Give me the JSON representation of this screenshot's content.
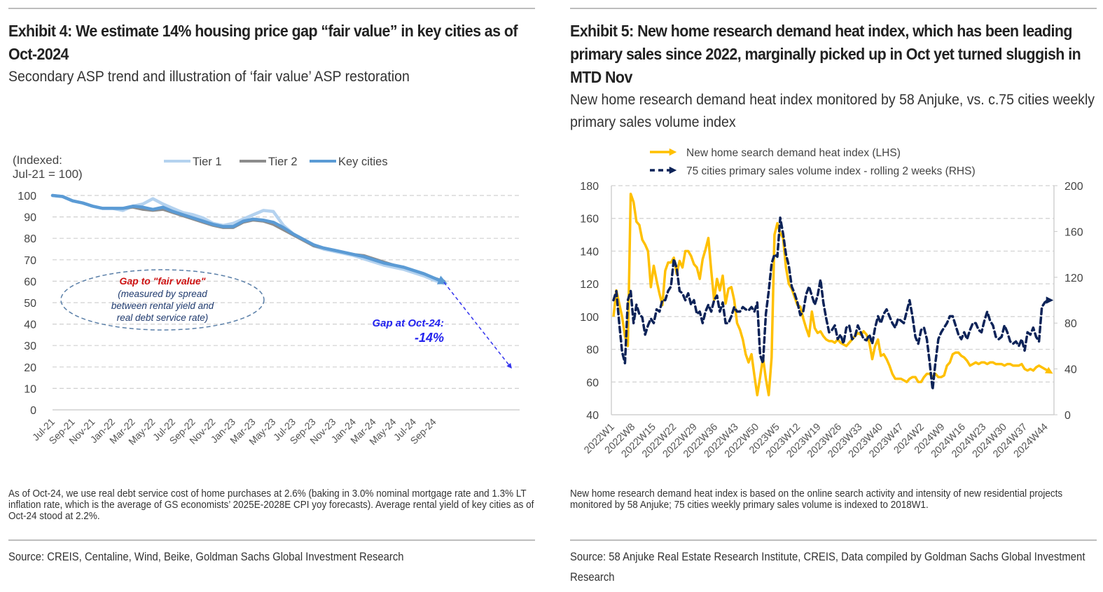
{
  "exhibit4": {
    "title": "Exhibit 4: We estimate 14% housing price gap “fair value” in key cities as of Oct-2024",
    "subtitle": "Secondary ASP trend and illustration of ‘fair value’ ASP restoration",
    "note": "As of Oct-24, we use real debt service cost of home purchases at 2.6% (baking in 3.0% nominal mortgage rate and 1.3% LT inflation rate, which is the average of GS economists’ 2025E-2028E CPI yoy forecasts). Average rental yield of key cities as of Oct-24 stood at 2.2%.",
    "source": "Source: CREIS, Centaline, Wind, Beike, Goldman Sachs Global Investment Research"
  },
  "exhibit5": {
    "title": "Exhibit 5: New home research demand heat index, which has been leading primary sales since 2022, marginally picked up in Oct yet turned sluggish in MTD Nov",
    "subtitle": "New home research demand heat index monitored by 58 Anjuke, vs. c.75 cities weekly primary sales volume index",
    "note": "New home research demand heat index is based on the online search activity and intensity of new residential projects monitored by 58 Anjuke; 75 cities weekly primary sales volume is indexed to 2018W1.",
    "source": "Source: 58 Anjuke Real Estate Research Institute, CREIS, Data compiled by Goldman Sachs Global Investment Research"
  },
  "chart_data": [
    {
      "type": "line",
      "title": "Secondary ASP trend and illustration of ‘fair value’ ASP restoration",
      "ylabel_lines": [
        "(Indexed:",
        "Jul-21 = 100)"
      ],
      "xlabel": "",
      "ylim": [
        0,
        100
      ],
      "yticks": [
        0,
        10,
        20,
        30,
        40,
        50,
        60,
        70,
        80,
        90,
        100
      ],
      "grid": true,
      "legend_position": "top",
      "x_labels": [
        "Jul-21",
        "Sep-21",
        "Nov-21",
        "Jan-22",
        "Mar-22",
        "May-22",
        "Jul-22",
        "Sep-22",
        "Nov-22",
        "Jan-23",
        "Mar-23",
        "May-23",
        "Jul-23",
        "Sep-23",
        "Nov-23",
        "Jan-24",
        "Mar-24",
        "May-24",
        "Jul-24",
        "Sep-24"
      ],
      "x": [
        "Jul-21",
        "Aug-21",
        "Sep-21",
        "Oct-21",
        "Nov-21",
        "Dec-21",
        "Jan-22",
        "Feb-22",
        "Mar-22",
        "Apr-22",
        "May-22",
        "Jun-22",
        "Jul-22",
        "Aug-22",
        "Sep-22",
        "Oct-22",
        "Nov-22",
        "Dec-22",
        "Jan-23",
        "Feb-23",
        "Mar-23",
        "Apr-23",
        "May-23",
        "Jun-23",
        "Jul-23",
        "Aug-23",
        "Sep-23",
        "Oct-23",
        "Nov-23",
        "Dec-23",
        "Jan-24",
        "Feb-24",
        "Mar-24",
        "Apr-24",
        "May-24",
        "Jun-24",
        "Jul-24",
        "Aug-24",
        "Sep-24",
        "Oct-24"
      ],
      "series": [
        {
          "name": "Tier 1",
          "color": "#b4d2ef",
          "values": [
            100,
            99.5,
            97.5,
            96.5,
            95,
            94,
            94,
            93,
            95,
            96,
            98.5,
            96,
            94,
            92,
            91,
            89.5,
            87,
            86,
            87,
            89,
            91,
            93,
            92.5,
            86,
            82,
            79.5,
            76.5,
            75,
            74,
            73,
            72,
            70.5,
            69,
            67.5,
            66.5,
            65.5,
            64,
            62.5,
            60.5,
            59
          ]
        },
        {
          "name": "Tier 2",
          "color": "#8c8c8c",
          "values": [
            100,
            99.5,
            97.5,
            96.5,
            95,
            94,
            94,
            94,
            94.5,
            93.5,
            93,
            93.5,
            92,
            90.5,
            89,
            87.5,
            86,
            85,
            85,
            87.5,
            88.5,
            88,
            86.5,
            84,
            81.5,
            79,
            76.5,
            75.5,
            74.5,
            73.5,
            72.5,
            72,
            70.5,
            69,
            67.5,
            66.5,
            65,
            63.5,
            61.5,
            60
          ]
        },
        {
          "name": "Key cities",
          "color": "#5b9bd5",
          "values": [
            100,
            99.5,
            97.5,
            96.5,
            95,
            94,
            94,
            94,
            95,
            94.5,
            93.5,
            94.5,
            92.5,
            91,
            89.5,
            88,
            86.5,
            85.5,
            85.5,
            88,
            89,
            88.5,
            87.5,
            85,
            82,
            79.5,
            77,
            75.5,
            74.5,
            73.5,
            72.5,
            71.5,
            70,
            68.5,
            67.5,
            66.5,
            65,
            63.5,
            61.5,
            59.5
          ]
        }
      ],
      "projection": {
        "from": {
          "x": "Oct-24",
          "y": 59.5
        },
        "to_value": 20,
        "style": "dashed-arrow",
        "color": "#3333ee"
      },
      "annotations": [
        {
          "text_lines": [
            "Gap to \"fair value\""
          ],
          "color": "#cc1111",
          "style": "bold-italic"
        },
        {
          "text_lines": [
            "(measured by spread",
            "between rental yield and",
            "real debt service rate)"
          ],
          "color": "#1f3a6e",
          "style": "italic"
        },
        {
          "text_lines": [
            "Gap at Oct-24:",
            "-14%"
          ],
          "color": "#2222ee",
          "style": "bold-italic"
        }
      ]
    },
    {
      "type": "line",
      "title": "New home research demand heat index monitored by 58 Anjuke, vs. c.75 cities weekly primary sales volume index",
      "xlabel": "",
      "ylim": [
        40,
        180
      ],
      "yticks": [
        40,
        60,
        80,
        100,
        120,
        140,
        160,
        180
      ],
      "y2lim": [
        0,
        200
      ],
      "y2ticks": [
        0,
        40,
        80,
        120,
        160,
        200
      ],
      "grid": true,
      "legend_position": "top",
      "x_labels": [
        "2022W1",
        "2022W8",
        "2022W15",
        "2022W22",
        "2022W29",
        "2022W36",
        "2022W43",
        "2022W50",
        "2023W5",
        "2023W12",
        "2023W19",
        "2023W26",
        "2023W33",
        "2023W40",
        "2023W47",
        "2024W2",
        "2024W9",
        "2024W16",
        "2024W23",
        "2024W30",
        "2024W37",
        "2024W44"
      ],
      "series": [
        {
          "name": "New home search demand heat index (LHS)",
          "axis": "left",
          "color": "#ffc000",
          "style": "solid",
          "values": [
            100,
            116,
            108,
            100,
            88,
            82,
            175,
            170,
            158,
            156,
            147,
            144,
            140,
            118,
            131,
            122,
            114,
            107,
            128,
            133,
            133,
            136,
            126,
            134,
            130,
            140,
            140,
            137,
            132,
            130,
            123,
            135,
            141,
            148,
            128,
            110,
            123,
            116,
            125,
            108,
            117,
            118,
            110,
            96,
            92,
            86,
            77,
            72,
            77,
            64,
            52,
            63,
            75,
            62,
            52,
            75,
            150,
            157,
            151,
            148,
            130,
            120,
            117,
            112,
            107,
            106,
            99,
            93,
            88,
            103,
            93,
            90,
            91,
            88,
            86,
            85,
            85,
            84,
            86,
            84,
            83,
            82,
            84,
            86,
            88,
            90,
            89,
            91,
            89,
            84,
            74,
            82,
            86,
            76,
            77,
            74,
            70,
            65,
            62,
            62,
            62,
            61,
            60,
            62,
            63,
            63,
            60,
            60,
            63,
            65,
            65,
            63,
            65,
            63,
            63,
            64,
            70,
            72,
            77,
            78,
            78,
            76,
            75,
            73,
            70,
            71,
            72,
            71,
            72,
            72,
            71,
            72,
            72,
            71,
            71,
            71,
            70,
            71,
            71,
            70,
            70,
            70,
            71,
            68,
            67,
            68,
            67,
            69,
            70,
            69,
            68,
            67,
            66
          ]
        },
        {
          "name": "75 cities primary sales volume index - rolling 2 weeks (RHS)",
          "axis": "right",
          "color": "#0d2358",
          "style": "dashed",
          "values": [
            100,
            108,
            80,
            55,
            45,
            100,
            108,
            80,
            96,
            88,
            85,
            70,
            78,
            84,
            80,
            92,
            90,
            100,
            100,
            108,
            112,
            136,
            128,
            108,
            106,
            100,
            106,
            96,
            100,
            88,
            90,
            80,
            90,
            96,
            90,
            100,
            104,
            90,
            98,
            80,
            80,
            86,
            94,
            90,
            90,
            94,
            92,
            91,
            94,
            90,
            98,
            52,
            45,
            88,
            108,
            132,
            140,
            138,
            172,
            158,
            140,
            130,
            112,
            106,
            98,
            87,
            90,
            105,
            112,
            104,
            96,
            104,
            118,
            98,
            84,
            72,
            74,
            78,
            66,
            70,
            62,
            76,
            78,
            66,
            68,
            78,
            72,
            66,
            65,
            70,
            62,
            76,
            86,
            80,
            88,
            92,
            86,
            80,
            76,
            84,
            82,
            80,
            90,
            100,
            86,
            68,
            62,
            74,
            76,
            66,
            45,
            22,
            46,
            66,
            72,
            76,
            80,
            86,
            86,
            78,
            70,
            66,
            72,
            66,
            74,
            80,
            80,
            74,
            72,
            82,
            90,
            82,
            78,
            68,
            66,
            68,
            78,
            72,
            64,
            62,
            64,
            60,
            66,
            56,
            72,
            70,
            76,
            68,
            64,
            94,
            98,
            100,
            100
          ]
        }
      ]
    }
  ]
}
